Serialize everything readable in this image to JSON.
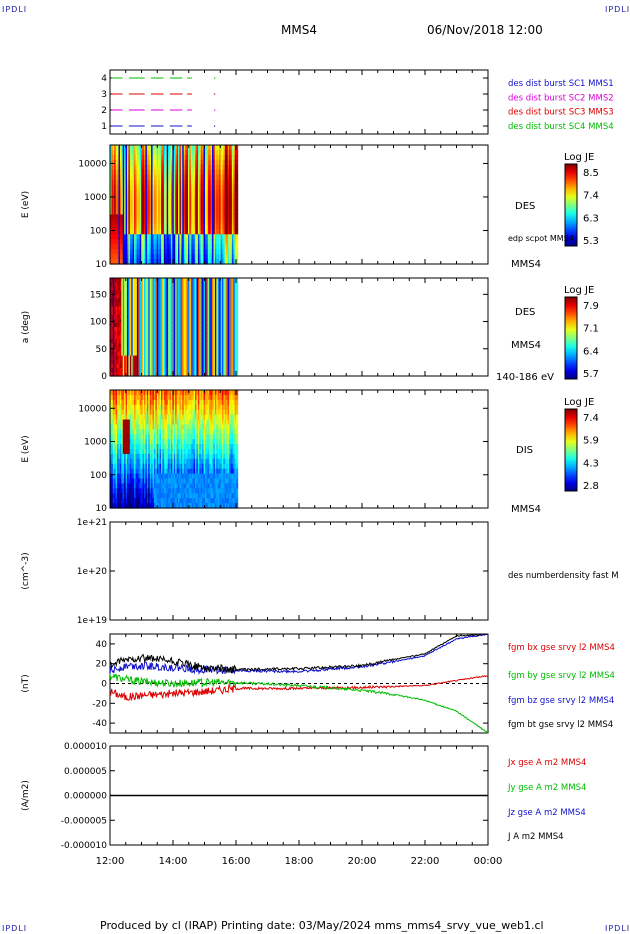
{
  "corners": {
    "tl": "IPDLI",
    "tr": "IPDLI",
    "bl": "IPDLI",
    "br": "IPDLI"
  },
  "header": {
    "spacecraft": "MMS4",
    "date": "06/Nov/2018 12:00"
  },
  "footer": {
    "text": "Produced by cl (IRAP)   Printing date: 03/May/2024   mms_mms4_srvy_vue_web1.cl"
  },
  "time_axis": {
    "ticks": [
      "12:00",
      "14:00",
      "16:00",
      "18:00",
      "20:00",
      "22:00",
      "00:00"
    ]
  },
  "colors": {
    "mms1": "#1111cc",
    "mms2": "#dd00dd",
    "mms3": "#dd0000",
    "mms4": "#00bb00"
  },
  "chart_data": [
    {
      "type": "scatter",
      "panel": "burst",
      "yticks": [
        "1",
        "2",
        "3",
        "4"
      ],
      "legend": [
        {
          "label": "des dist burst SC1 MMS1",
          "color": "#1111cc"
        },
        {
          "label": "des dist burst SC2 MMS2",
          "color": "#dd00dd"
        },
        {
          "label": "des dist burst SC3 MMS3",
          "color": "#dd0000"
        },
        {
          "label": "des dist burst SC4 MMS4",
          "color": "#00bb00"
        }
      ]
    },
    {
      "type": "heatmap",
      "panel": "des-energy",
      "ylabel": "E (eV)",
      "yscale": "log",
      "yticks": [
        "10",
        "100",
        "1000",
        "10000"
      ],
      "right_labels": [
        "DES",
        "edp scpot MMS4",
        "MMS4"
      ],
      "colorbar": {
        "title": "Log JE",
        "ticks": [
          "8.5",
          "7.4",
          "6.3",
          "5.3"
        ]
      }
    },
    {
      "type": "heatmap",
      "panel": "des-pitch",
      "ylabel": "a (deg)",
      "yticks": [
        "0",
        "50",
        "100",
        "150"
      ],
      "right_labels": [
        "DES",
        "MMS4",
        "140-186 eV"
      ],
      "colorbar": {
        "title": "Log JE",
        "ticks": [
          "7.9",
          "7.1",
          "6.4",
          "5.7"
        ]
      }
    },
    {
      "type": "heatmap",
      "panel": "dis-energy",
      "ylabel": "E (eV)",
      "yscale": "log",
      "yticks": [
        "10",
        "100",
        "1000",
        "10000"
      ],
      "right_labels": [
        "DIS",
        "MMS4"
      ],
      "colorbar": {
        "title": "Log JE",
        "ticks": [
          "7.4",
          "5.9",
          "4.3",
          "2.8"
        ]
      }
    },
    {
      "type": "line",
      "panel": "density",
      "ylabel": "(cm^-3)",
      "yscale": "log",
      "yticks": [
        "1e+19",
        "1e+20",
        "1e+21"
      ],
      "right_labels": [
        "des numberdensity fast M"
      ]
    },
    {
      "type": "line",
      "panel": "bfield",
      "ylabel": "(nT)",
      "yticks": [
        "-40",
        "-20",
        "0",
        "20",
        "40"
      ],
      "ylim": [
        -50,
        50
      ],
      "right_labels": [
        "fgm bx gse srvy l2 MMS4",
        "fgm by gse srvy l2 MMS4",
        "fgm bz gse srvy l2 MMS4",
        "fgm bt gse srvy l2 MMS4"
      ],
      "series": [
        {
          "name": "fgm bx gse srvy l2 MMS4",
          "color": "#dd0000",
          "x": [
            "12:00",
            "12:30",
            "13:00",
            "14:00",
            "15:00",
            "16:00",
            "18:00",
            "20:00",
            "21:00",
            "22:00",
            "23:00",
            "00:00"
          ],
          "y": [
            -8,
            -14,
            -12,
            -10,
            -8,
            -5,
            -5,
            -4,
            -3,
            -2,
            3,
            8
          ]
        },
        {
          "name": "fgm by gse srvy l2 MMS4",
          "color": "#00bb00",
          "x": [
            "12:00",
            "12:30",
            "13:00",
            "14:00",
            "15:00",
            "16:00",
            "18:00",
            "20:00",
            "21:00",
            "22:00",
            "23:00",
            "00:00"
          ],
          "y": [
            8,
            4,
            2,
            0,
            1,
            1,
            -2,
            -7,
            -11,
            -17,
            -28,
            -50
          ]
        },
        {
          "name": "fgm bz gse srvy l2 MMS4",
          "color": "#1111cc",
          "x": [
            "12:00",
            "12:30",
            "13:00",
            "14:00",
            "15:00",
            "16:00",
            "18:00",
            "20:00",
            "21:00",
            "22:00",
            "23:00",
            "00:00"
          ],
          "y": [
            12,
            18,
            18,
            16,
            14,
            13,
            12,
            17,
            22,
            28,
            45,
            50
          ]
        },
        {
          "name": "fgm bt gse srvy l2 MMS4",
          "color": "#000000",
          "x": [
            "12:00",
            "12:30",
            "13:00",
            "14:00",
            "15:00",
            "16:00",
            "18:00",
            "20:00",
            "21:00",
            "22:00",
            "23:00",
            "00:00"
          ],
          "y": [
            18,
            24,
            26,
            22,
            16,
            14,
            15,
            18,
            24,
            30,
            48,
            50
          ]
        }
      ]
    },
    {
      "type": "line",
      "panel": "current",
      "ylabel": "(A/m2)",
      "yticks": [
        "-0.000010",
        "-0.000005",
        "0.000000",
        "0.000005",
        "0.000010"
      ],
      "ylim": [
        -1e-05,
        1e-05
      ],
      "right_labels": [
        "Jx gse A m2 MMS4",
        "Jy gse A m2 MMS4",
        "Jz gse A m2 MMS4",
        "J A m2 MMS4"
      ],
      "series": [
        {
          "name": "J A m2 MMS4",
          "color": "#000000",
          "x": [
            "12:00",
            "00:00"
          ],
          "y": [
            0,
            0
          ]
        }
      ]
    }
  ]
}
